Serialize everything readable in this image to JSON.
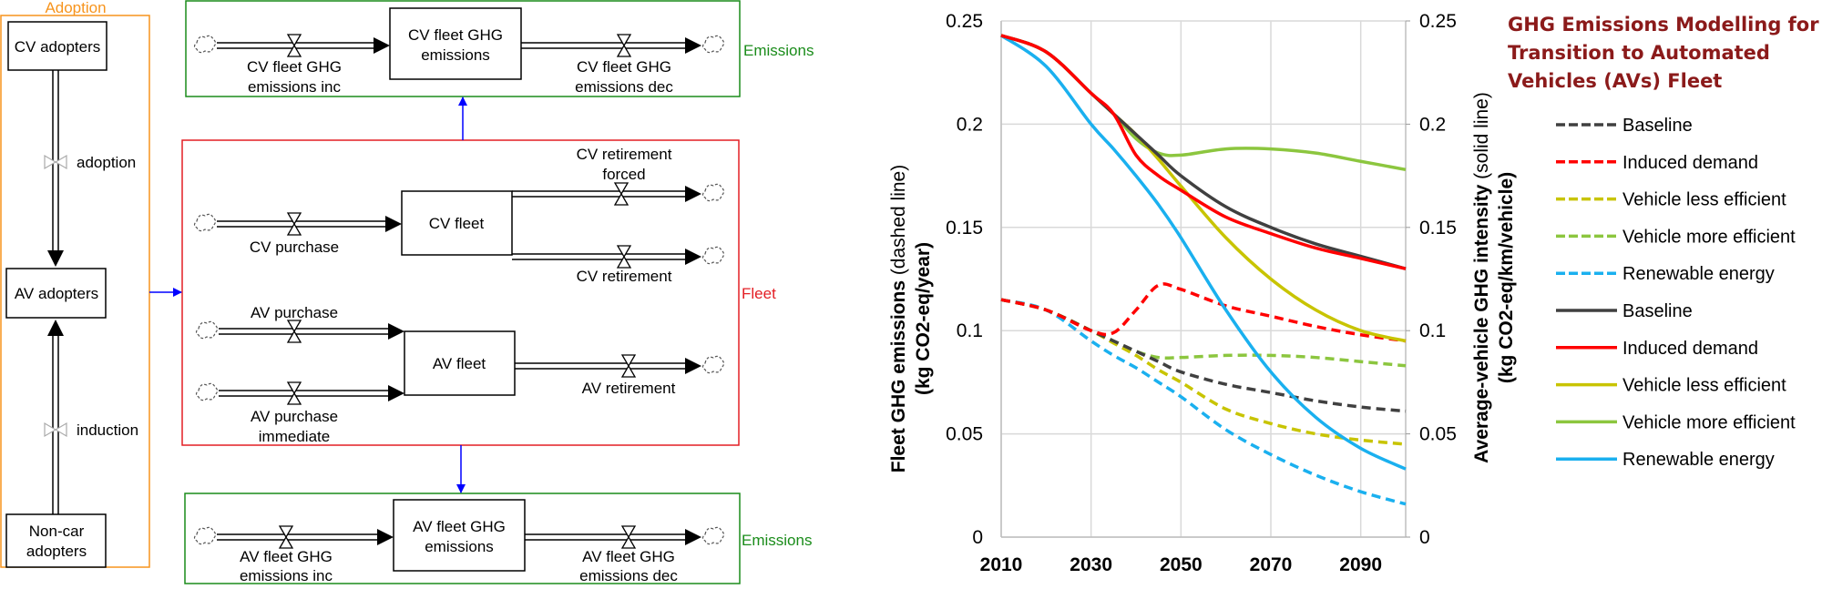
{
  "diagram": {
    "adoption": {
      "title": "Adoption",
      "cv_adopters": "CV adopters",
      "av_adopters": "AV adopters",
      "non_car": [
        "Non-car",
        "adopters"
      ],
      "adoption_flow": "adoption",
      "induction_flow": "induction"
    },
    "cv_emissions": {
      "group_label": "Emissions",
      "stock": [
        "CV fleet GHG",
        "emissions"
      ],
      "inflow": [
        "CV fleet GHG",
        "emissions inc"
      ],
      "outflow": [
        "CV fleet GHG",
        "emissions dec"
      ]
    },
    "fleet": {
      "group_label": "Fleet",
      "cv_fleet": "CV fleet",
      "av_fleet": "AV fleet",
      "cv_purchase": "CV purchase",
      "cv_retirement_forced": [
        "CV retirement",
        "forced"
      ],
      "cv_retirement": "CV retirement",
      "av_purchase": "AV purchase",
      "av_purchase_immediate": [
        "AV purchase",
        "immediate"
      ],
      "av_retirement": "AV retirement"
    },
    "av_emissions": {
      "group_label": "Emissions",
      "stock": [
        "AV fleet GHG",
        "emissions"
      ],
      "inflow": [
        "AV fleet GHG",
        "emissions inc"
      ],
      "outflow": [
        "AV fleet GHG",
        "emissions dec"
      ]
    },
    "colors": {
      "adoption": "#f7941d",
      "emissions": "#1a8c1a",
      "fleet": "#e31e24",
      "link": "#0000ff"
    }
  },
  "chart_data": {
    "type": "line",
    "title": [
      "GHG Emissions Modelling for",
      "Transition to Automated",
      "Vehicles (AVs) Fleet"
    ],
    "ylabel_left": {
      "bold": "Fleet GHG emissions",
      "normal": " (dashed line)",
      "unit": "(kg CO2-eq/year)"
    },
    "ylabel_right": {
      "bold": "Average-vehicle GHG intensity",
      "normal": " (solid line)",
      "unit": "(kg CO2-eq/km/vehicle)"
    },
    "xlim": [
      2010,
      2100
    ],
    "ylim": [
      0,
      0.25
    ],
    "x_ticks": [
      "2010",
      "2030",
      "2050",
      "2070",
      "2090"
    ],
    "y_ticks": [
      "0",
      "0.05",
      "0.1",
      "0.15",
      "0.2",
      "0.25"
    ],
    "grid": true,
    "legend_position": "right",
    "x": [
      2010,
      2020,
      2030,
      2035,
      2040,
      2045,
      2050,
      2060,
      2070,
      2080,
      2090,
      2100
    ],
    "series": [
      {
        "name": "Baseline",
        "style": "dashed",
        "color": "#404040",
        "values": [
          0.115,
          0.11,
          0.1,
          0.095,
          0.09,
          0.085,
          0.08,
          0.074,
          0.07,
          0.066,
          0.063,
          0.061
        ]
      },
      {
        "name": "Induced demand",
        "style": "dashed",
        "color": "#ff0000",
        "values": [
          0.115,
          0.11,
          0.1,
          0.099,
          0.11,
          0.122,
          0.12,
          0.112,
          0.107,
          0.102,
          0.098,
          0.095
        ]
      },
      {
        "name": "Vehicle less efficient",
        "style": "dashed",
        "color": "#c8c400",
        "values": [
          0.115,
          0.11,
          0.1,
          0.094,
          0.088,
          0.081,
          0.075,
          0.062,
          0.055,
          0.05,
          0.047,
          0.045
        ]
      },
      {
        "name": "Vehicle more efficient",
        "style": "dashed",
        "color": "#8cc63f",
        "values": [
          0.115,
          0.11,
          0.1,
          0.095,
          0.09,
          0.087,
          0.087,
          0.088,
          0.088,
          0.087,
          0.085,
          0.083
        ]
      },
      {
        "name": "Renewable energy",
        "style": "dashed",
        "color": "#1ab0ef",
        "values": [
          0.115,
          0.11,
          0.095,
          0.088,
          0.082,
          0.075,
          0.068,
          0.052,
          0.04,
          0.03,
          0.022,
          0.016
        ]
      },
      {
        "name": "Baseline",
        "style": "solid",
        "color": "#404040",
        "values": [
          0.243,
          0.235,
          0.215,
          0.205,
          0.195,
          0.185,
          0.175,
          0.16,
          0.15,
          0.142,
          0.136,
          0.13
        ]
      },
      {
        "name": "Induced demand",
        "style": "solid",
        "color": "#ff0000",
        "values": [
          0.243,
          0.235,
          0.215,
          0.205,
          0.185,
          0.175,
          0.168,
          0.155,
          0.147,
          0.14,
          0.135,
          0.13
        ]
      },
      {
        "name": "Vehicle less efficient",
        "style": "solid",
        "color": "#c8c400",
        "values": [
          0.243,
          0.235,
          0.215,
          0.205,
          0.195,
          0.183,
          0.17,
          0.145,
          0.125,
          0.11,
          0.1,
          0.095
        ]
      },
      {
        "name": "Vehicle more efficient",
        "style": "solid",
        "color": "#8cc63f",
        "values": [
          0.243,
          0.235,
          0.215,
          0.205,
          0.193,
          0.186,
          0.185,
          0.188,
          0.188,
          0.186,
          0.182,
          0.178
        ]
      },
      {
        "name": "Renewable energy",
        "style": "solid",
        "color": "#1ab0ef",
        "values": [
          0.243,
          0.228,
          0.2,
          0.188,
          0.175,
          0.161,
          0.145,
          0.11,
          0.08,
          0.058,
          0.043,
          0.033
        ]
      }
    ]
  }
}
